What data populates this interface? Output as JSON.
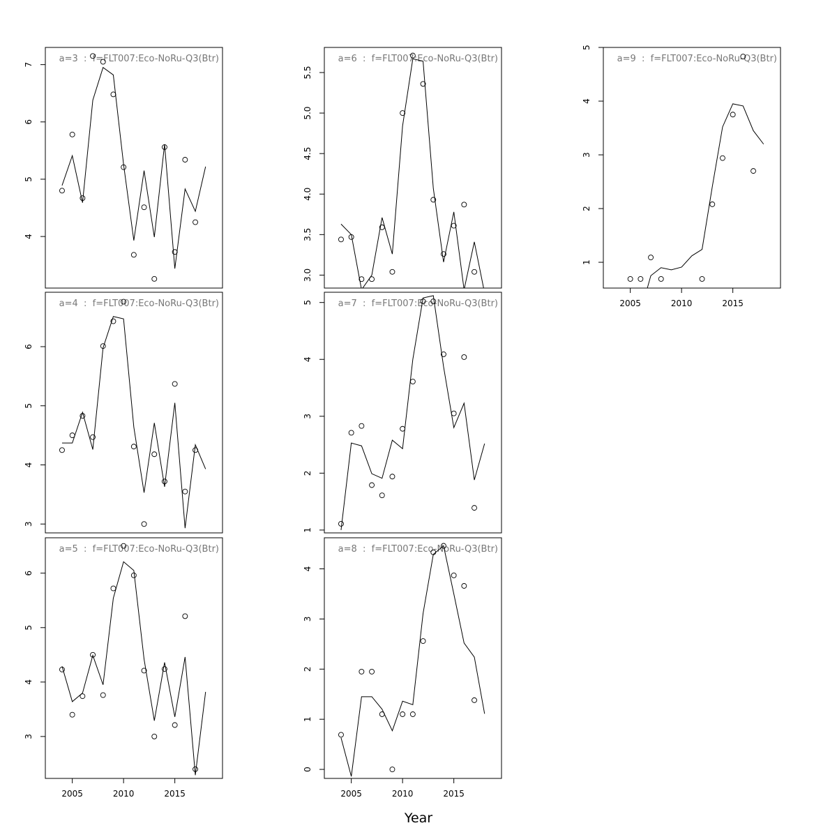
{
  "xlabel": "Year",
  "chart_data": [
    {
      "type": "line",
      "title": "a=3  :  f=FLT007:Eco-NoRu-Q3(Btr)",
      "x": [
        2004,
        2005,
        2006,
        2007,
        2008,
        2009,
        2010,
        2011,
        2012,
        2013,
        2014,
        2015,
        2016,
        2017,
        2018
      ],
      "xlim": [
        2002.37,
        2019.65
      ],
      "ylim": [
        3.1,
        7.3
      ],
      "yticks": [
        4,
        5,
        6,
        7
      ],
      "series": [
        {
          "style": "points",
          "color": "#000000",
          "values": [
            4.8,
            5.78,
            4.67,
            7.15,
            7.05,
            6.48,
            5.21,
            3.68,
            4.51,
            3.26,
            5.56,
            3.73,
            5.34,
            4.25,
            null
          ]
        },
        {
          "style": "line",
          "color": "#000000",
          "values": [
            4.89,
            5.41,
            4.59,
            6.38,
            6.95,
            6.82,
            5.26,
            3.93,
            5.15,
            3.99,
            5.61,
            3.44,
            4.83,
            4.44,
            5.22
          ]
        }
      ]
    },
    {
      "type": "line",
      "title": "a=4  :  f=FLT007:Eco-NoRu-Q3(Btr)",
      "x": [
        2004,
        2005,
        2006,
        2007,
        2008,
        2009,
        2010,
        2011,
        2012,
        2013,
        2014,
        2015,
        2016,
        2017,
        2018
      ],
      "xlim": [
        2002.37,
        2019.65
      ],
      "ylim": [
        2.85,
        6.92
      ],
      "yticks": [
        3,
        4,
        5,
        6
      ],
      "series": [
        {
          "style": "points",
          "color": "#000000",
          "values": [
            4.25,
            4.5,
            4.83,
            4.47,
            6.01,
            6.43,
            6.76,
            4.31,
            3.0,
            4.18,
            3.72,
            5.37,
            3.55,
            4.25,
            null
          ]
        },
        {
          "style": "line",
          "color": "#000000",
          "values": [
            4.37,
            4.37,
            4.89,
            4.26,
            5.98,
            6.51,
            6.47,
            4.64,
            3.53,
            4.71,
            3.63,
            5.05,
            2.93,
            4.34,
            3.93
          ]
        }
      ]
    },
    {
      "type": "line",
      "title": "a=5  :  f=FLT007:Eco-NoRu-Q3(Btr)",
      "x": [
        2004,
        2005,
        2006,
        2007,
        2008,
        2009,
        2010,
        2011,
        2012,
        2013,
        2014,
        2015,
        2016,
        2017,
        2018
      ],
      "xlim": [
        2002.37,
        2019.65
      ],
      "xticks": [
        2005,
        2010,
        2015
      ],
      "ylim": [
        2.23,
        6.65
      ],
      "yticks": [
        3,
        4,
        5,
        6
      ],
      "series": [
        {
          "style": "points",
          "color": "#000000",
          "values": [
            4.23,
            3.4,
            3.74,
            4.5,
            3.76,
            5.72,
            6.5,
            5.96,
            4.21,
            3.0,
            4.24,
            3.21,
            5.21,
            2.4,
            null
          ]
        },
        {
          "style": "line",
          "color": "#000000",
          "values": [
            4.29,
            3.64,
            3.8,
            4.49,
            3.95,
            5.54,
            6.21,
            6.05,
            4.42,
            3.29,
            4.36,
            3.36,
            4.46,
            2.29,
            3.82
          ]
        }
      ]
    },
    {
      "type": "line",
      "title": "a=6  :  f=FLT007:Eco-NoRu-Q3(Btr)",
      "x": [
        2004,
        2005,
        2006,
        2007,
        2008,
        2009,
        2010,
        2011,
        2012,
        2013,
        2014,
        2015,
        2016,
        2017,
        2018
      ],
      "xlim": [
        2002.37,
        2019.65
      ],
      "ylim": [
        2.84,
        5.81
      ],
      "yticks": [
        {
          "value": 3,
          "label": "3.0"
        },
        3.5,
        {
          "value": 4,
          "label": "4.0"
        },
        4.5,
        {
          "value": 5,
          "label": "5.0"
        },
        5.5
      ],
      "series": [
        {
          "style": "points",
          "color": "#000000",
          "values": [
            3.44,
            3.47,
            2.95,
            2.95,
            3.59,
            3.04,
            5.0,
            5.71,
            5.36,
            3.93,
            3.26,
            3.61,
            3.87,
            3.04,
            null
          ]
        },
        {
          "style": "line",
          "color": "#000000",
          "values": [
            3.63,
            3.5,
            2.82,
            3.0,
            3.71,
            3.26,
            4.84,
            5.67,
            5.64,
            4.07,
            3.16,
            3.78,
            2.82,
            3.41,
            2.78
          ]
        }
      ]
    },
    {
      "type": "line",
      "title": "a=7  :  f=FLT007:Eco-NoRu-Q3(Btr)",
      "x": [
        2004,
        2005,
        2006,
        2007,
        2008,
        2009,
        2010,
        2011,
        2012,
        2013,
        2014,
        2015,
        2016,
        2017,
        2018
      ],
      "xlim": [
        2002.37,
        2019.65
      ],
      "ylim": [
        0.95,
        5.18
      ],
      "yticks": [
        1,
        2,
        3,
        4,
        5
      ],
      "series": [
        {
          "style": "points",
          "color": "#000000",
          "values": [
            1.11,
            2.71,
            2.83,
            1.79,
            1.61,
            1.94,
            2.78,
            3.61,
            5.02,
            5.02,
            4.09,
            3.05,
            4.04,
            1.39,
            null
          ]
        },
        {
          "style": "line",
          "color": "#000000",
          "values": [
            1.0,
            2.53,
            2.48,
            1.99,
            1.91,
            2.58,
            2.43,
            4.0,
            5.08,
            5.12,
            3.87,
            2.8,
            3.23,
            1.88,
            2.52
          ]
        }
      ]
    },
    {
      "type": "line",
      "title": "a=8  :  f=FLT007:Eco-NoRu-Q3(Btr)",
      "x": [
        2004,
        2005,
        2006,
        2007,
        2008,
        2009,
        2010,
        2011,
        2012,
        2013,
        2014,
        2015,
        2016,
        2017,
        2018
      ],
      "xlim": [
        2002.37,
        2019.65
      ],
      "xticks": [
        2005,
        2010,
        2015
      ],
      "ylim": [
        -0.18,
        4.62
      ],
      "yticks": [
        0,
        1,
        2,
        3,
        4
      ],
      "series": [
        {
          "style": "points",
          "color": "#000000",
          "values": [
            0.69,
            null,
            1.95,
            1.95,
            1.1,
            0.0,
            1.1,
            1.1,
            2.56,
            4.33,
            4.46,
            3.87,
            3.66,
            1.38,
            null
          ]
        },
        {
          "style": "line",
          "color": "#000000",
          "values": [
            0.63,
            -0.14,
            1.45,
            1.45,
            1.2,
            0.77,
            1.36,
            1.29,
            3.11,
            4.29,
            4.46,
            3.5,
            2.52,
            2.24,
            1.11
          ]
        }
      ]
    },
    {
      "type": "line",
      "title": "a=9  :  f=FLT007:Eco-NoRu-Q3(Btr)",
      "x": [
        2004,
        2005,
        2006,
        2007,
        2008,
        2009,
        2010,
        2011,
        2012,
        2013,
        2014,
        2015,
        2016,
        2017,
        2018
      ],
      "xlim": [
        2002.37,
        2019.65
      ],
      "xticks": [
        2005,
        2010,
        2015
      ],
      "ylim": [
        0.52,
        5
      ],
      "yticks": [
        1,
        2,
        3,
        4,
        5
      ],
      "series": [
        {
          "style": "points",
          "color": "#000000",
          "values": [
            null,
            0.69,
            0.69,
            1.09,
            0.69,
            null,
            null,
            null,
            0.69,
            2.08,
            2.94,
            3.75,
            4.83,
            2.7,
            null
          ]
        },
        {
          "style": "line",
          "color": "#000000",
          "values": [
            null,
            null,
            0.07,
            0.75,
            0.9,
            0.86,
            0.91,
            1.12,
            1.24,
            2.41,
            3.52,
            3.95,
            3.91,
            3.45,
            3.2
          ]
        }
      ]
    }
  ]
}
